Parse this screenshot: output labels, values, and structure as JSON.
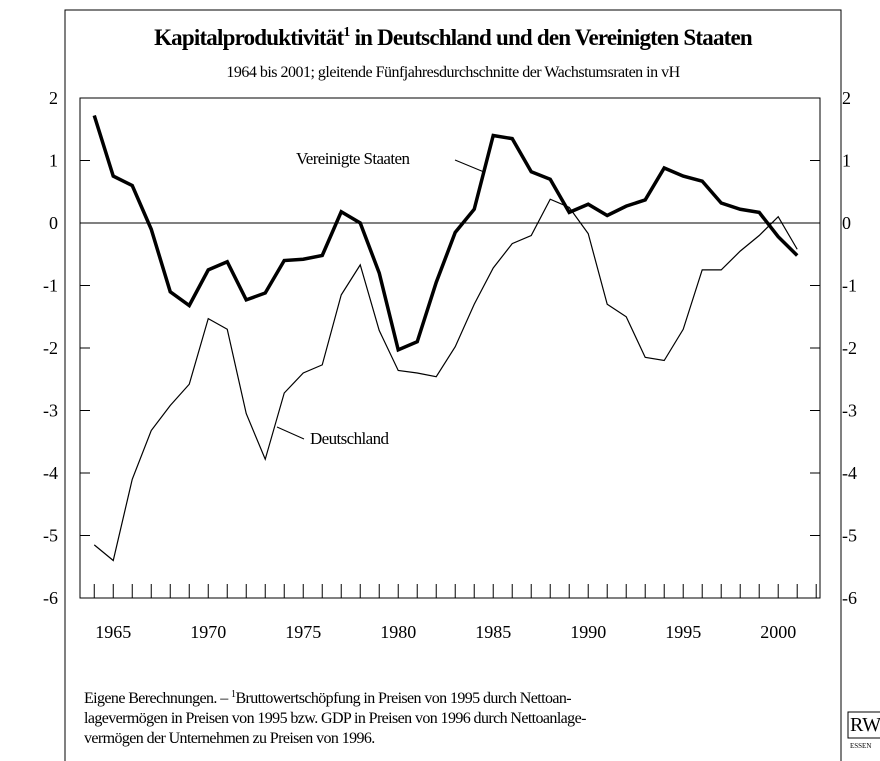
{
  "chart_data": {
    "type": "line",
    "title": [
      "Kapitalproduktivität",
      "1",
      " in Deutschland und den Vereinigten Staaten"
    ],
    "subtitle": "1964 bis 2001; gleitende Fünfjahresdurchschnitte der Wachstumsraten in vH",
    "x": [
      1964,
      1965,
      1966,
      1967,
      1968,
      1969,
      1970,
      1971,
      1972,
      1973,
      1974,
      1975,
      1976,
      1977,
      1978,
      1979,
      1980,
      1981,
      1982,
      1983,
      1984,
      1985,
      1986,
      1987,
      1988,
      1989,
      1990,
      1991,
      1992,
      1993,
      1994,
      1995,
      1996,
      1997,
      1998,
      1999,
      2000,
      2001
    ],
    "series": [
      {
        "name": "Vereinigte Staaten",
        "color": "#000000",
        "width": 3.5,
        "values": [
          1.72,
          0.75,
          0.6,
          -0.1,
          -1.1,
          -1.32,
          -0.75,
          -0.62,
          -1.23,
          -1.12,
          -0.6,
          -0.58,
          -0.52,
          0.18,
          0.0,
          -0.8,
          -2.03,
          -1.9,
          -0.95,
          -0.15,
          0.22,
          1.4,
          1.35,
          0.82,
          0.7,
          0.17,
          0.3,
          0.12,
          0.27,
          0.37,
          0.88,
          0.75,
          0.67,
          0.32,
          0.22,
          0.17,
          -0.22,
          -0.52
        ]
      },
      {
        "name": "Deutschland",
        "color": "#000000",
        "width": 1.2,
        "values": [
          -5.15,
          -5.4,
          -4.1,
          -3.32,
          -2.92,
          -2.58,
          -1.53,
          -1.7,
          -3.05,
          -3.78,
          -2.72,
          -2.4,
          -2.27,
          -1.15,
          -0.67,
          -1.72,
          -2.36,
          -2.4,
          -2.46,
          -1.98,
          -1.3,
          -0.72,
          -0.33,
          -0.2,
          0.38,
          0.25,
          -0.17,
          -1.3,
          -1.5,
          -2.15,
          -2.2,
          -1.7,
          -0.75,
          -0.75,
          -0.45,
          -0.2,
          0.1,
          -0.42
        ]
      }
    ],
    "xlim": [
      1963.25,
      2002.2
    ],
    "xticks": [
      1965,
      1970,
      1975,
      1980,
      1985,
      1990,
      1995,
      2000
    ],
    "xminorticks": [
      1964,
      1965,
      1966,
      1967,
      1968,
      1969,
      1970,
      1971,
      1972,
      1973,
      1974,
      1975,
      1976,
      1977,
      1978,
      1979,
      1980,
      1981,
      1982,
      1983,
      1984,
      1985,
      1986,
      1987,
      1988,
      1989,
      1990,
      1991,
      1992,
      1993,
      1994,
      1995,
      1996,
      1997,
      1998,
      1999,
      2000,
      2001,
      2002
    ],
    "ylim": [
      -6,
      2
    ],
    "yticks": [
      -6,
      -5,
      -4,
      -3,
      -2,
      -1,
      0,
      1,
      2
    ],
    "footnote": [
      [
        "Eigene Berechnungen. – ",
        "1",
        "Bruttowertschöpfung in Preisen von 1995 durch Nettoan-"
      ],
      "lagevermögen in Preisen von 1995 bzw. GDP in Preisen von 1996 durch Nettoanlage-",
      "vermögen der Unternehmen zu Preisen von 1996."
    ],
    "logo": {
      "text": "RWI",
      "sub": "ESSEN"
    }
  }
}
